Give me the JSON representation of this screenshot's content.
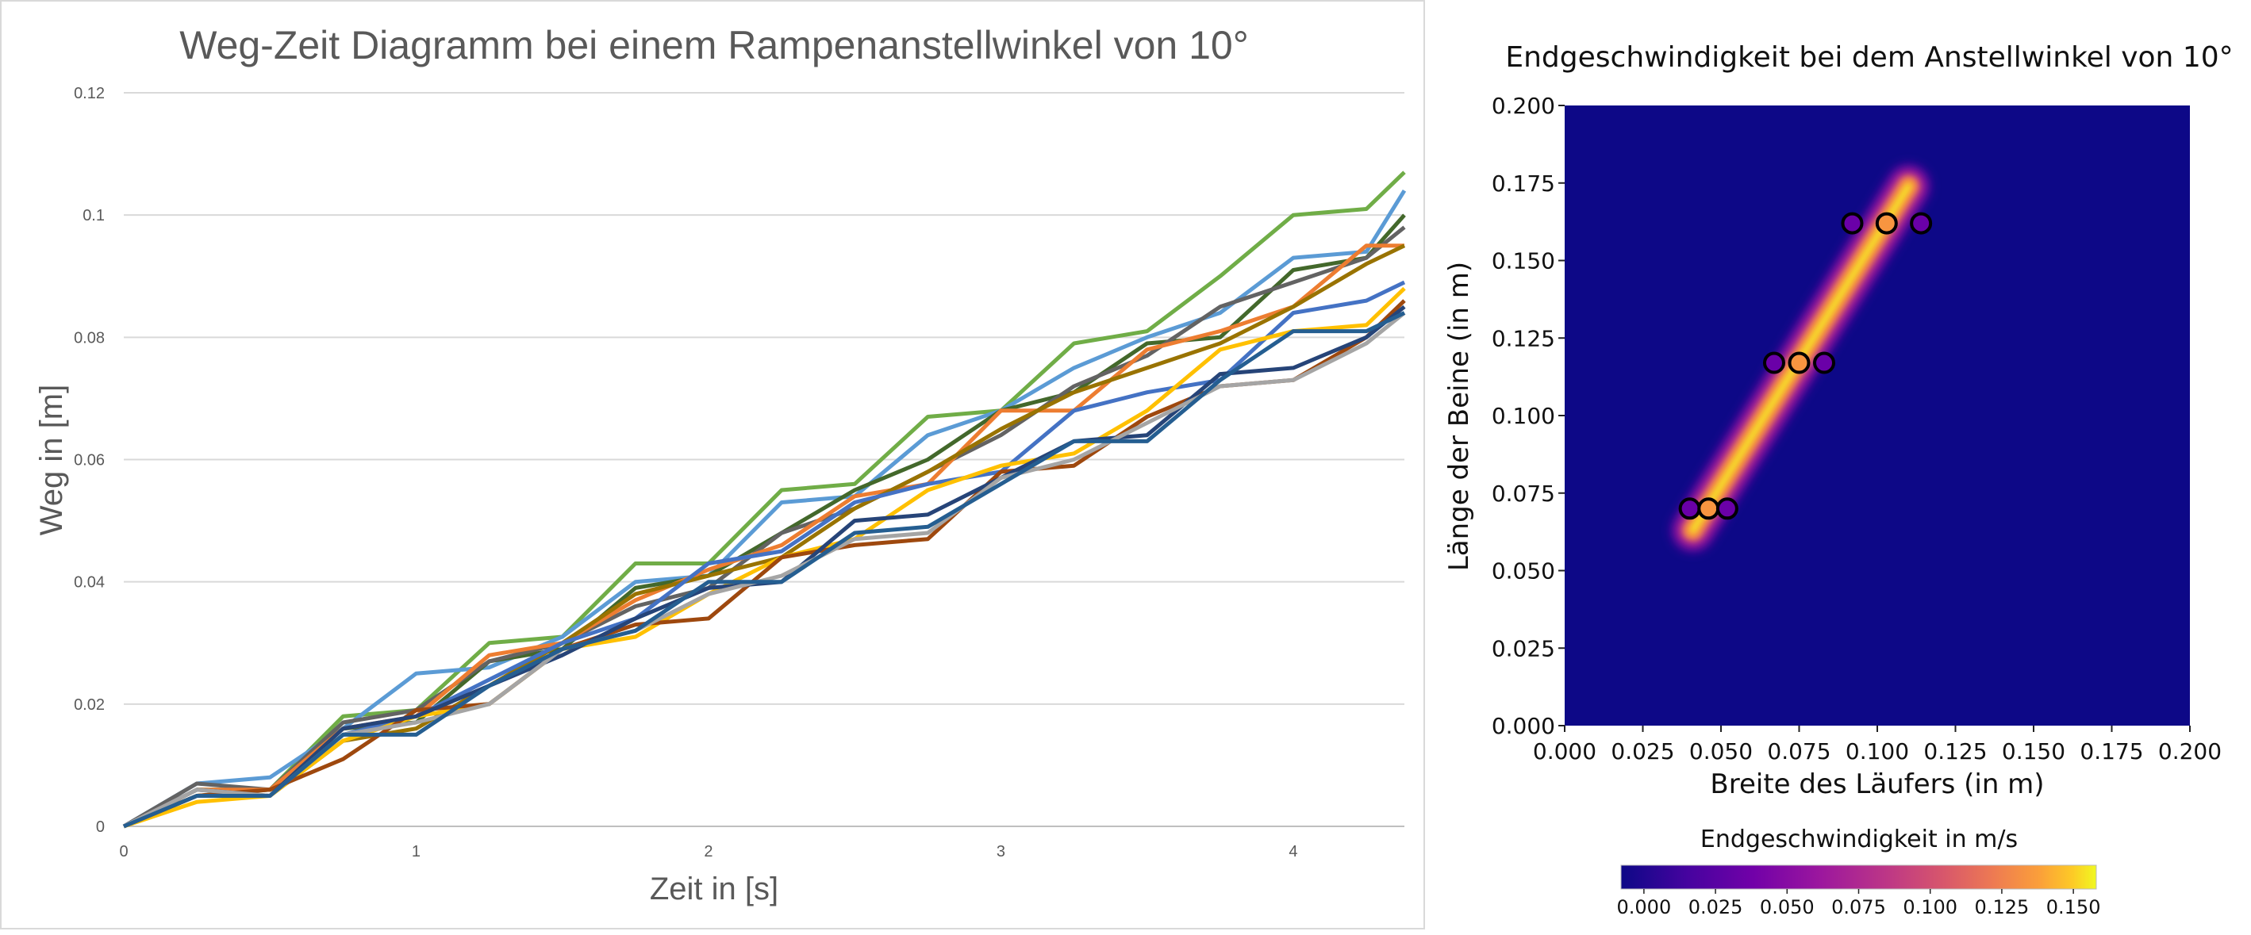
{
  "chart_data": [
    {
      "type": "line",
      "title": "Weg-Zeit Diagramm bei einem Rampenanstellwinkel von 10°",
      "xlabel": "Zeit in [s]",
      "ylabel": "Weg in [m]",
      "xlim": [
        0,
        4.38
      ],
      "ylim": [
        0,
        0.12
      ],
      "xticks": [
        "0",
        "1",
        "2",
        "3",
        "4"
      ],
      "yticks": [
        "0",
        "0.02",
        "0.04",
        "0.06",
        "0.08",
        "0.1",
        "0.12"
      ],
      "grid": "horizontal",
      "legend": "none",
      "x": [
        0,
        0.25,
        0.5,
        0.75,
        1,
        1.25,
        1.5,
        1.75,
        2,
        2.25,
        2.5,
        2.75,
        3,
        3.25,
        3.5,
        3.75,
        4,
        4.25,
        4.38
      ],
      "series": [
        {
          "color": "#70AD47",
          "values": [
            0,
            0.006,
            0.006,
            0.018,
            0.019,
            0.03,
            0.031,
            0.043,
            0.043,
            0.055,
            0.056,
            0.067,
            0.068,
            0.079,
            0.081,
            0.09,
            0.1,
            0.101,
            0.107
          ]
        },
        {
          "color": "#5B9BD5",
          "values": [
            0,
            0.007,
            0.008,
            0.016,
            0.025,
            0.026,
            0.031,
            0.04,
            0.041,
            0.053,
            0.054,
            0.064,
            0.068,
            0.075,
            0.08,
            0.084,
            0.093,
            0.094,
            0.104
          ]
        },
        {
          "color": "#43682B",
          "values": [
            0,
            0.005,
            0.006,
            0.016,
            0.017,
            0.027,
            0.029,
            0.039,
            0.041,
            0.048,
            0.055,
            0.06,
            0.068,
            0.071,
            0.079,
            0.08,
            0.091,
            0.093,
            0.1
          ]
        },
        {
          "color": "#636363",
          "values": [
            0,
            0.007,
            0.006,
            0.017,
            0.019,
            0.027,
            0.03,
            0.036,
            0.039,
            0.048,
            0.052,
            0.058,
            0.064,
            0.072,
            0.077,
            0.085,
            0.089,
            0.093,
            0.098
          ]
        },
        {
          "color": "#ED7D31",
          "values": [
            0,
            0.006,
            0.006,
            0.016,
            0.018,
            0.028,
            0.03,
            0.037,
            0.042,
            0.046,
            0.054,
            0.056,
            0.068,
            0.068,
            0.078,
            0.081,
            0.085,
            0.095,
            0.095
          ]
        },
        {
          "color": "#997300",
          "values": [
            0,
            0.005,
            0.005,
            0.014,
            0.016,
            0.023,
            0.03,
            0.038,
            0.041,
            0.044,
            0.052,
            0.058,
            0.065,
            0.071,
            0.075,
            0.079,
            0.085,
            0.092,
            0.095
          ]
        },
        {
          "color": "#4472C4",
          "values": [
            0,
            0.005,
            0.005,
            0.015,
            0.018,
            0.024,
            0.03,
            0.034,
            0.043,
            0.045,
            0.053,
            0.056,
            0.058,
            0.068,
            0.071,
            0.073,
            0.084,
            0.086,
            0.089
          ]
        },
        {
          "color": "#FFC000",
          "values": [
            0,
            0.004,
            0.005,
            0.014,
            0.018,
            0.02,
            0.029,
            0.031,
            0.038,
            0.044,
            0.047,
            0.055,
            0.059,
            0.061,
            0.068,
            0.078,
            0.081,
            0.082,
            0.088
          ]
        },
        {
          "color": "#9E480E",
          "values": [
            0,
            0.005,
            0.006,
            0.011,
            0.019,
            0.02,
            0.029,
            0.033,
            0.034,
            0.044,
            0.046,
            0.047,
            0.058,
            0.059,
            0.067,
            0.072,
            0.073,
            0.08,
            0.086
          ]
        },
        {
          "color": "#264478",
          "values": [
            0,
            0.006,
            0.005,
            0.016,
            0.018,
            0.023,
            0.028,
            0.034,
            0.039,
            0.04,
            0.05,
            0.051,
            0.057,
            0.063,
            0.064,
            0.074,
            0.075,
            0.08,
            0.085
          ]
        },
        {
          "color": "#A5A5A5",
          "values": [
            0,
            0.006,
            0.005,
            0.015,
            0.017,
            0.02,
            0.029,
            0.032,
            0.038,
            0.041,
            0.047,
            0.048,
            0.057,
            0.06,
            0.066,
            0.072,
            0.073,
            0.079,
            0.084
          ]
        },
        {
          "color": "#255E91",
          "values": [
            0,
            0.005,
            0.005,
            0.015,
            0.015,
            0.023,
            0.029,
            0.032,
            0.04,
            0.04,
            0.048,
            0.049,
            0.056,
            0.063,
            0.063,
            0.073,
            0.081,
            0.081,
            0.084
          ]
        }
      ]
    },
    {
      "type": "heatmap",
      "title": "Endgeschwindigkeit bei dem Anstellwinkel von 10°",
      "xlabel": "Breite des Läufers (in m)",
      "ylabel": "Länge der Beine (in m)",
      "xlim": [
        0,
        0.2
      ],
      "ylim": [
        0,
        0.2
      ],
      "xticks": [
        "0.000",
        "0.025",
        "0.050",
        "0.075",
        "0.100",
        "0.125",
        "0.150",
        "0.175",
        "0.200"
      ],
      "yticks": [
        "0.000",
        "0.025",
        "0.050",
        "0.075",
        "0.100",
        "0.125",
        "0.150",
        "0.175",
        "0.200"
      ],
      "colormap": "plasma",
      "background_color": "#0d0887",
      "band": {
        "from": [
          0.041,
          0.063
        ],
        "to": [
          0.11,
          0.174
        ]
      },
      "colorbar": {
        "label": "Endgeschwindigkeit in m/s",
        "ticks": [
          "0.000",
          "0.025",
          "0.050",
          "0.075",
          "0.100",
          "0.125",
          "0.150"
        ],
        "range": [
          -0.008,
          0.158
        ],
        "orientation": "horizontal"
      },
      "points": [
        {
          "x": 0.04,
          "y": 0.07,
          "color": "#6a00a8"
        },
        {
          "x": 0.046,
          "y": 0.07,
          "color": "#f89540"
        },
        {
          "x": 0.052,
          "y": 0.07,
          "color": "#6a00a8"
        },
        {
          "x": 0.067,
          "y": 0.117,
          "color": "#6a00a8"
        },
        {
          "x": 0.075,
          "y": 0.117,
          "color": "#f89540"
        },
        {
          "x": 0.083,
          "y": 0.117,
          "color": "#6a00a8"
        },
        {
          "x": 0.092,
          "y": 0.162,
          "color": "#6a00a8"
        },
        {
          "x": 0.103,
          "y": 0.162,
          "color": "#f89540"
        },
        {
          "x": 0.114,
          "y": 0.162,
          "color": "#6a00a8"
        }
      ]
    }
  ]
}
